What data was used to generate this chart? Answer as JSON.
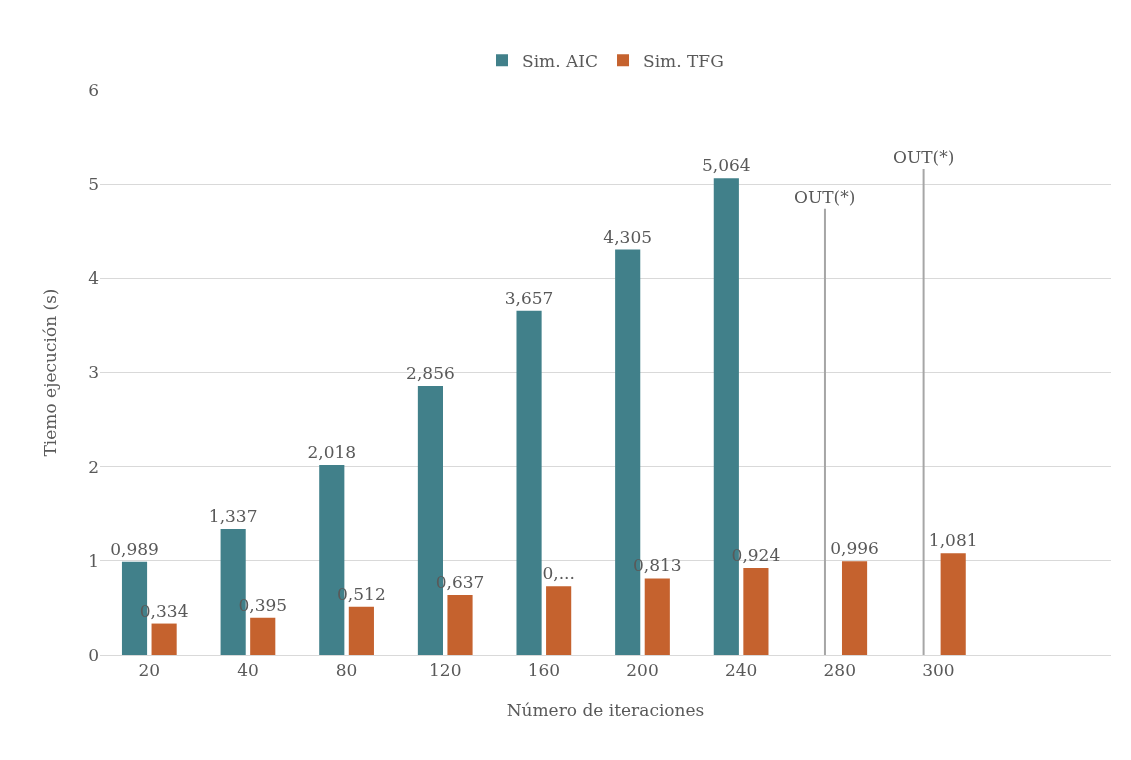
{
  "chart_data": {
    "type": "bar",
    "xlabel": "Número de iteraciones",
    "ylabel": "Tiemo ejecución (s)",
    "categories": [
      "20",
      "40",
      "80",
      "120",
      "160",
      "200",
      "240",
      "280",
      "300"
    ],
    "series": [
      {
        "name": "Sim. AIC",
        "color": "#41808a",
        "values": [
          0.989,
          1.337,
          2.018,
          2.856,
          3.657,
          4.305,
          5.064,
          null,
          null
        ],
        "value_labels": [
          "0,989",
          "1,337",
          "2,018",
          "2,856",
          "3,657",
          "4,305",
          "5,064",
          null,
          null
        ]
      },
      {
        "name": "Sim. TFG",
        "color": "#c5622e",
        "values": [
          0.334,
          0.395,
          0.512,
          0.637,
          0.73,
          0.813,
          0.924,
          0.996,
          1.081
        ],
        "value_labels": [
          "0,334",
          "0,395",
          "0,512",
          "0,637",
          "0,...",
          "0,813",
          "0,924",
          "0,996",
          "1,081"
        ]
      }
    ],
    "ref_lines": [
      {
        "axis": "x",
        "value": "280",
        "label": "OUT(*)",
        "color": "#a6a6a6"
      },
      {
        "axis": "x",
        "value": "300",
        "label": "OUT(*)",
        "color": "#a6a6a6"
      }
    ],
    "ylim": [
      0,
      6
    ],
    "yticks": [
      0,
      1,
      2,
      3,
      4,
      5,
      6
    ],
    "grid": "y",
    "legend": "top"
  }
}
